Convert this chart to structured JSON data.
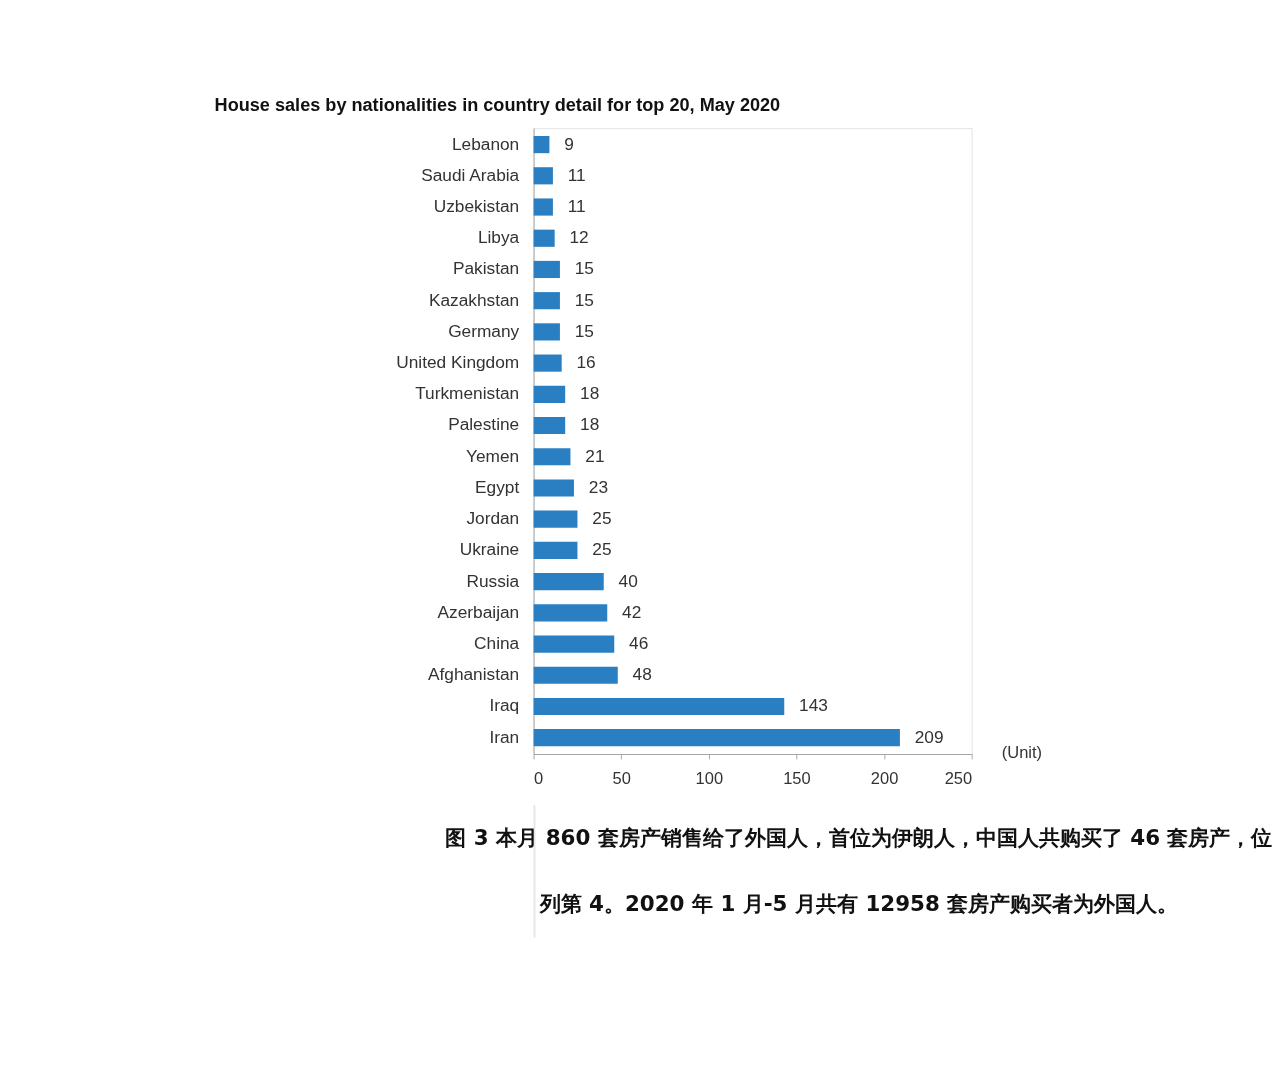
{
  "chart_data": {
    "type": "bar",
    "orientation": "horizontal",
    "title": "House sales by nationalities in country detail for top 20, May 2020",
    "categories": [
      "Lebanon",
      "Saudi Arabia",
      "Uzbekistan",
      "Libya",
      "Pakistan",
      "Kazakhstan",
      "Germany",
      "United Kingdom",
      "Turkmenistan",
      "Palestine",
      "Yemen",
      "Egypt",
      "Jordan",
      "Ukraine",
      "Russia",
      "Azerbaijan",
      "China",
      "Afghanistan",
      "Iraq",
      "Iran"
    ],
    "values": [
      9,
      11,
      11,
      12,
      15,
      15,
      15,
      16,
      18,
      18,
      21,
      23,
      25,
      25,
      40,
      42,
      46,
      48,
      143,
      209
    ],
    "color": "#2a7fc3",
    "xlabel": "(Unit)",
    "xlim": [
      0,
      250
    ],
    "xticks": [
      0,
      50,
      100,
      150,
      200,
      250
    ],
    "grid": false,
    "data_labels": true,
    "annotations": [
      "图 3 本月 860 套房产销售给了外国人，首位为伊朗人，中国人共购买了 46 套房产，位",
      "列第 4。2020 年 1 月-5 月共有 12958 套房产购买者为外国人。"
    ]
  }
}
